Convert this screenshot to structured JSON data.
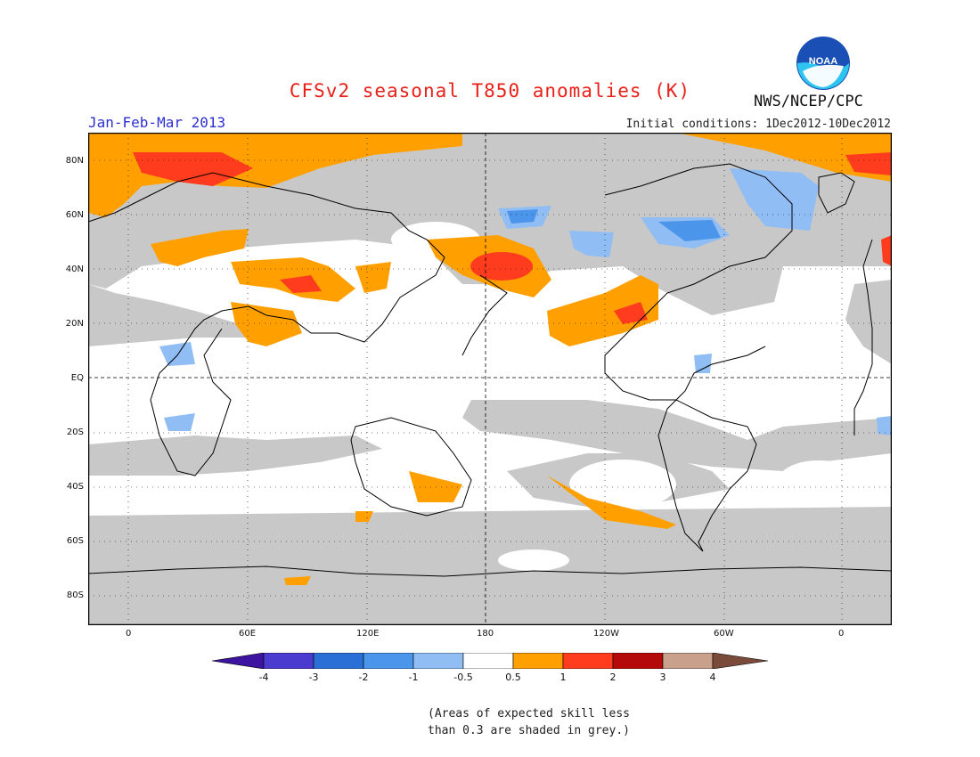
{
  "title": "CFSv2 seasonal T850 anomalies (K)",
  "season": "Jan-Feb-Mar 2013",
  "initial_conditions": "Initial conditions: 1Dec2012-10Dec2012",
  "agency": "NWS/NCEP/CPC",
  "logo_text": "NOAA",
  "map": {
    "longitude_labels": [
      "0",
      "60E",
      "120E",
      "180",
      "120W",
      "60W",
      "0"
    ],
    "latitude_labels": [
      "80N",
      "60N",
      "40N",
      "20N",
      "EQ",
      "20S",
      "40S",
      "60S",
      "80S"
    ],
    "regions": [
      {
        "type": "positive",
        "value": "0.5 to 1",
        "area": "Arctic / Greenland"
      },
      {
        "type": "positive",
        "value": "1 to 2",
        "area": "Greenland / Svalbard"
      },
      {
        "type": "positive",
        "value": "0.5 to 1",
        "area": "North Pacific near dateline"
      },
      {
        "type": "positive",
        "value": "1 to 2",
        "area": "North Pacific near dateline"
      },
      {
        "type": "positive",
        "value": "0.5 to 2",
        "area": "Mexico / eastern tropical Pacific"
      },
      {
        "type": "positive",
        "value": "0.5 to 2",
        "area": "Central and South Asia"
      },
      {
        "type": "positive",
        "value": "0.5 to 1",
        "area": "South Pacific, south of Australia"
      },
      {
        "type": "negative",
        "value": "-1 to -0.5",
        "area": "Canada / Alaska"
      },
      {
        "type": "negative",
        "value": "-1 to -0.5",
        "area": "Western Africa"
      }
    ]
  },
  "colorbar": {
    "labels": [
      "-4",
      "-3",
      "-2",
      "-1",
      "-0.5",
      "0.5",
      "1",
      "2",
      "3",
      "4"
    ],
    "colors": [
      "#3c14a0",
      "#4b3ccf",
      "#2a6fd6",
      "#4b95ea",
      "#8fbdf4",
      "#ffffff",
      "#ffa000",
      "#ff3c1e",
      "#b40a0a",
      "#c8a08c",
      "#7a4a3a"
    ]
  },
  "footnote": [
    "(Areas of expected skill less",
    "than 0.3 are shaded in grey.)"
  ],
  "palette": {
    "skill_grey": "#c8c8c8",
    "pos_05_1": "#ffa000",
    "pos_1_2": "#ff3c1e",
    "neg_05_1": "#8fbdf4",
    "neg_1_2": "#4b95ea"
  }
}
